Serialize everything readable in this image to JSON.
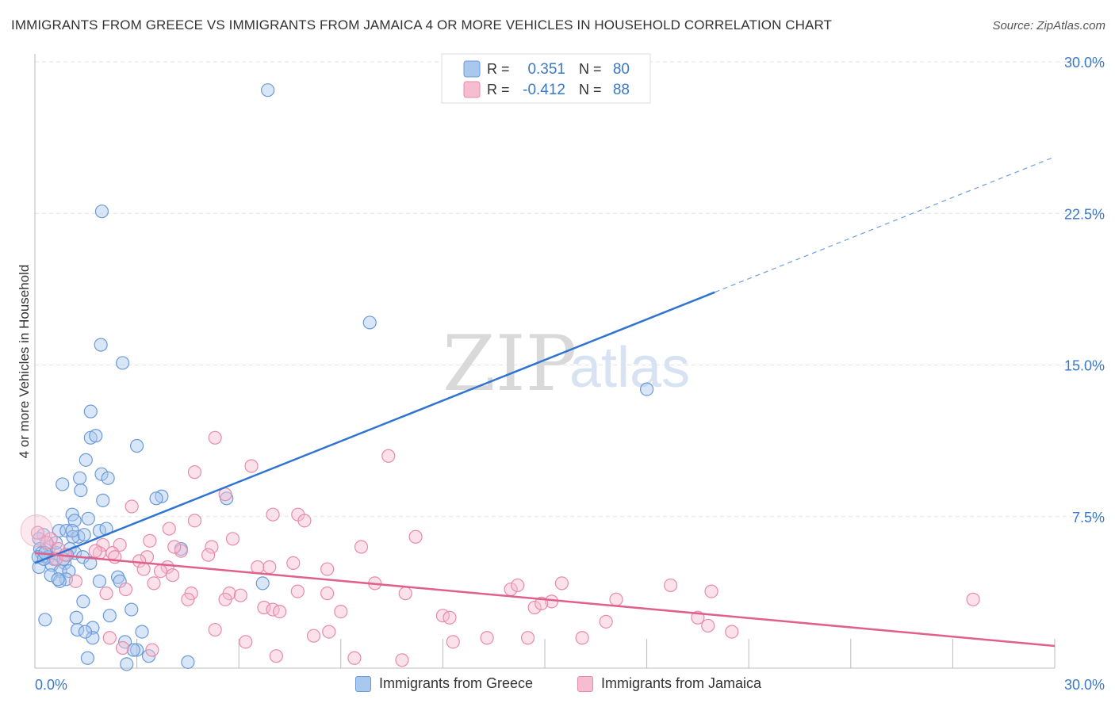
{
  "header": {
    "title": "IMMIGRANTS FROM GREECE VS IMMIGRANTS FROM JAMAICA 4 OR MORE VEHICLES IN HOUSEHOLD CORRELATION CHART",
    "source": "Source: ZipAtlas.com"
  },
  "watermark": {
    "zip": "ZIP",
    "atlas": "atlas"
  },
  "colors": {
    "greece_fill": "#aac8ee",
    "greece_stroke": "#6a9ad8",
    "greece_line": "#2f74d0",
    "jamaica_fill": "#f6bcd0",
    "jamaica_stroke": "#e88aaa",
    "jamaica_line": "#e0608c",
    "tick_label": "#3a78c8",
    "grid": "#e3e3e3"
  },
  "legend": {
    "r_label": "R =",
    "n_label": "N =",
    "rows": [
      {
        "series": "greece",
        "r": "0.351",
        "n": "80"
      },
      {
        "series": "jamaica",
        "r": "-0.412",
        "n": "88"
      }
    ]
  },
  "bottom_legend": [
    "Immigrants from Greece",
    "Immigrants from Jamaica"
  ],
  "chart_data": {
    "type": "scatter",
    "title": "IMMIGRANTS FROM GREECE VS IMMIGRANTS FROM JAMAICA 4 OR MORE VEHICLES IN HOUSEHOLD CORRELATION CHART",
    "xlabel": "",
    "ylabel": "4 or more Vehicles in Household",
    "xlim": [
      0,
      30
    ],
    "ylim": [
      0,
      30
    ],
    "x_tick_labels": [
      "0.0%",
      "30.0%"
    ],
    "y_ticks": [
      7.5,
      15.0,
      22.5,
      30.0
    ],
    "y_tick_labels": [
      "7.5%",
      "15.0%",
      "22.5%",
      "30.0%"
    ],
    "grid": true,
    "series": [
      {
        "name": "Immigrants from Greece",
        "r": 0.351,
        "n": 80,
        "trend": {
          "x": [
            0,
            20
          ],
          "y": [
            5.2,
            18.6
          ],
          "dashed_to": [
            30,
            25.3
          ]
        },
        "points": [
          [
            6.85,
            28.6
          ],
          [
            1.97,
            22.6
          ],
          [
            9.85,
            17.1
          ],
          [
            1.94,
            16.0
          ],
          [
            2.58,
            15.1
          ],
          [
            18.0,
            13.8
          ],
          [
            1.64,
            12.7
          ],
          [
            1.64,
            11.4
          ],
          [
            1.79,
            11.5
          ],
          [
            3.0,
            11.0
          ],
          [
            1.5,
            10.3
          ],
          [
            1.96,
            9.6
          ],
          [
            0.81,
            9.1
          ],
          [
            1.32,
            9.4
          ],
          [
            2.15,
            9.4
          ],
          [
            1.35,
            8.8
          ],
          [
            3.73,
            8.5
          ],
          [
            3.57,
            8.4
          ],
          [
            2.0,
            8.3
          ],
          [
            5.64,
            8.4
          ],
          [
            1.1,
            7.6
          ],
          [
            1.57,
            7.4
          ],
          [
            1.17,
            7.3
          ],
          [
            1.9,
            6.8
          ],
          [
            0.71,
            6.8
          ],
          [
            0.93,
            6.8
          ],
          [
            1.28,
            6.5
          ],
          [
            1.12,
            6.5
          ],
          [
            0.25,
            6.6
          ],
          [
            0.12,
            6.4
          ],
          [
            0.43,
            6.0
          ],
          [
            0.15,
            5.9
          ],
          [
            0.63,
            5.7
          ],
          [
            0.2,
            5.7
          ],
          [
            0.4,
            5.5
          ],
          [
            0.1,
            5.5
          ],
          [
            0.55,
            5.4
          ],
          [
            1.03,
            5.9
          ],
          [
            1.18,
            5.7
          ],
          [
            1.41,
            5.5
          ],
          [
            1.63,
            5.2
          ],
          [
            0.88,
            5.2
          ],
          [
            0.5,
            5.1
          ],
          [
            0.12,
            5.0
          ],
          [
            0.26,
            5.4
          ],
          [
            0.75,
            4.8
          ],
          [
            1.0,
            4.8
          ],
          [
            0.47,
            4.6
          ],
          [
            0.92,
            4.4
          ],
          [
            0.73,
            4.3
          ],
          [
            0.68,
            4.4
          ],
          [
            2.44,
            4.5
          ],
          [
            2.5,
            4.3
          ],
          [
            1.9,
            4.3
          ],
          [
            4.3,
            5.9
          ],
          [
            6.7,
            4.2
          ],
          [
            1.42,
            3.3
          ],
          [
            2.84,
            2.9
          ],
          [
            2.2,
            2.6
          ],
          [
            1.22,
            2.5
          ],
          [
            0.3,
            2.4
          ],
          [
            1.25,
            1.9
          ],
          [
            1.7,
            2.0
          ],
          [
            3.15,
            1.8
          ],
          [
            1.7,
            1.5
          ],
          [
            2.65,
            1.3
          ],
          [
            3.0,
            0.9
          ],
          [
            3.35,
            0.6
          ],
          [
            1.55,
            0.5
          ],
          [
            4.5,
            0.3
          ],
          [
            2.7,
            0.2
          ],
          [
            1.48,
            1.8
          ],
          [
            2.9,
            0.9
          ],
          [
            1.1,
            6.8
          ],
          [
            0.95,
            5.6
          ],
          [
            0.3,
            5.7
          ],
          [
            0.62,
            6.2
          ],
          [
            2.1,
            6.9
          ],
          [
            1.45,
            6.6
          ],
          [
            0.84,
            5.4
          ]
        ]
      },
      {
        "name": "Immigrants from Jamaica",
        "r": -0.412,
        "n": 88,
        "trend": {
          "x": [
            0,
            30
          ],
          "y": [
            5.7,
            1.1
          ]
        },
        "points": [
          [
            5.3,
            11.4
          ],
          [
            10.4,
            10.5
          ],
          [
            6.37,
            10.0
          ],
          [
            4.7,
            9.7
          ],
          [
            5.6,
            8.6
          ],
          [
            2.85,
            8.0
          ],
          [
            7.0,
            7.6
          ],
          [
            7.74,
            7.6
          ],
          [
            7.93,
            7.3
          ],
          [
            4.7,
            7.3
          ],
          [
            3.95,
            6.9
          ],
          [
            11.2,
            6.5
          ],
          [
            5.82,
            6.4
          ],
          [
            9.6,
            6.0
          ],
          [
            3.38,
            6.3
          ],
          [
            2.5,
            6.1
          ],
          [
            5.2,
            6.0
          ],
          [
            2.0,
            6.1
          ],
          [
            4.3,
            5.8
          ],
          [
            2.28,
            5.7
          ],
          [
            4.1,
            6.0
          ],
          [
            1.9,
            5.7
          ],
          [
            3.3,
            5.5
          ],
          [
            3.07,
            5.3
          ],
          [
            2.35,
            5.5
          ],
          [
            5.1,
            5.6
          ],
          [
            7.6,
            5.2
          ],
          [
            6.9,
            5.0
          ],
          [
            6.55,
            5.0
          ],
          [
            8.6,
            4.9
          ],
          [
            3.9,
            5.0
          ],
          [
            3.7,
            4.8
          ],
          [
            3.2,
            4.9
          ],
          [
            4.05,
            4.6
          ],
          [
            3.5,
            4.2
          ],
          [
            2.67,
            3.9
          ],
          [
            2.1,
            3.7
          ],
          [
            1.78,
            5.8
          ],
          [
            0.7,
            5.9
          ],
          [
            0.62,
            5.4
          ],
          [
            0.47,
            6.4
          ],
          [
            0.08,
            6.7
          ],
          [
            0.35,
            6.2
          ],
          [
            0.9,
            5.6
          ],
          [
            1.2,
            4.3
          ],
          [
            4.6,
            3.7
          ],
          [
            4.5,
            3.4
          ],
          [
            5.72,
            3.7
          ],
          [
            5.6,
            3.4
          ],
          [
            6.05,
            3.6
          ],
          [
            6.74,
            3.0
          ],
          [
            7.73,
            3.8
          ],
          [
            7.0,
            2.9
          ],
          [
            8.6,
            3.7
          ],
          [
            10.0,
            4.2
          ],
          [
            10.9,
            3.7
          ],
          [
            14.0,
            3.9
          ],
          [
            14.2,
            4.1
          ],
          [
            15.5,
            4.2
          ],
          [
            17.1,
            3.4
          ],
          [
            15.2,
            3.3
          ],
          [
            14.7,
            3.0
          ],
          [
            14.9,
            3.2
          ],
          [
            18.7,
            4.1
          ],
          [
            19.9,
            3.8
          ],
          [
            27.6,
            3.4
          ],
          [
            12.0,
            2.6
          ],
          [
            12.2,
            2.5
          ],
          [
            9.0,
            2.8
          ],
          [
            7.2,
            2.8
          ],
          [
            5.3,
            1.9
          ],
          [
            8.2,
            1.6
          ],
          [
            8.65,
            1.8
          ],
          [
            13.3,
            1.5
          ],
          [
            14.5,
            1.5
          ],
          [
            16.1,
            1.5
          ],
          [
            16.8,
            2.3
          ],
          [
            19.5,
            2.5
          ],
          [
            19.8,
            2.1
          ],
          [
            20.5,
            1.8
          ],
          [
            12.3,
            1.3
          ],
          [
            2.2,
            1.5
          ],
          [
            6.2,
            1.3
          ],
          [
            7.1,
            0.6
          ],
          [
            9.4,
            0.5
          ],
          [
            10.8,
            0.4
          ],
          [
            2.58,
            1.0
          ],
          [
            3.45,
            0.9
          ]
        ]
      }
    ]
  }
}
